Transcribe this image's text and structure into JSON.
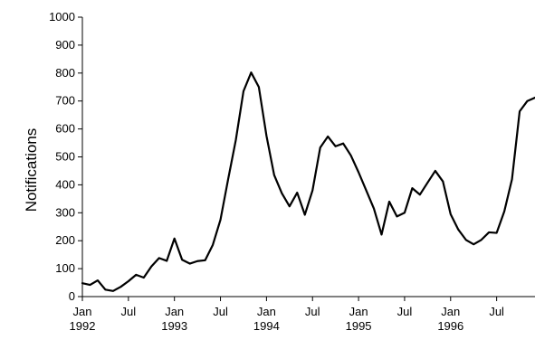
{
  "chart_data": {
    "type": "line",
    "title": "",
    "xlabel": "",
    "ylabel": "Notifications",
    "ylim": [
      0,
      1000
    ],
    "yticks": [
      0,
      100,
      200,
      300,
      400,
      500,
      600,
      700,
      800,
      900,
      1000
    ],
    "grid": false,
    "legend": "none",
    "x_ticks": [
      {
        "x": "1992-01",
        "line1": "Jan",
        "line2": "1992"
      },
      {
        "x": "1992-07",
        "line1": "Jul",
        "line2": ""
      },
      {
        "x": "1993-01",
        "line1": "Jan",
        "line2": "1993"
      },
      {
        "x": "1993-07",
        "line1": "Jul",
        "line2": ""
      },
      {
        "x": "1994-01",
        "line1": "Jan",
        "line2": "1994"
      },
      {
        "x": "1994-07",
        "line1": "Jul",
        "line2": ""
      },
      {
        "x": "1995-01",
        "line1": "Jan",
        "line2": "1995"
      },
      {
        "x": "1995-07",
        "line1": "Jul",
        "line2": ""
      },
      {
        "x": "1996-01",
        "line1": "Jan",
        "line2": "1996"
      },
      {
        "x": "1996-07",
        "line1": "Jul",
        "line2": ""
      }
    ],
    "x_range": [
      "1992-01",
      "1996-12"
    ],
    "series": [
      {
        "color": "#000000",
        "x": [
          "1992-01",
          "1992-02",
          "1992-03",
          "1992-04",
          "1992-05",
          "1992-06",
          "1992-07",
          "1992-08",
          "1992-09",
          "1992-10",
          "1992-11",
          "1992-12",
          "1993-01",
          "1993-02",
          "1993-03",
          "1993-04",
          "1993-05",
          "1993-06",
          "1993-07",
          "1993-08",
          "1993-09",
          "1993-10",
          "1993-11",
          "1993-12",
          "1994-01",
          "1994-02",
          "1994-03",
          "1994-04",
          "1994-05",
          "1994-06",
          "1994-07",
          "1994-08",
          "1994-09",
          "1994-10",
          "1994-11",
          "1994-12",
          "1995-01",
          "1995-02",
          "1995-03",
          "1995-04",
          "1995-05",
          "1995-06",
          "1995-07",
          "1995-08",
          "1995-09",
          "1995-10",
          "1995-11",
          "1995-12",
          "1996-01",
          "1996-02",
          "1996-03",
          "1996-04",
          "1996-05",
          "1996-06",
          "1996-07",
          "1996-08",
          "1996-09",
          "1996-10",
          "1996-11",
          "1996-12"
        ],
        "values": [
          48,
          42,
          58,
          25,
          20,
          35,
          55,
          78,
          68,
          108,
          138,
          128,
          208,
          132,
          118,
          127,
          130,
          185,
          275,
          420,
          560,
          735,
          802,
          750,
          575,
          435,
          370,
          323,
          372,
          293,
          380,
          533,
          573,
          538,
          548,
          505,
          445,
          380,
          315,
          222,
          340,
          287,
          300,
          388,
          365,
          408,
          450,
          412,
          295,
          240,
          203,
          187,
          203,
          230,
          228,
          305,
          420,
          663,
          700,
          712
        ]
      }
    ]
  }
}
